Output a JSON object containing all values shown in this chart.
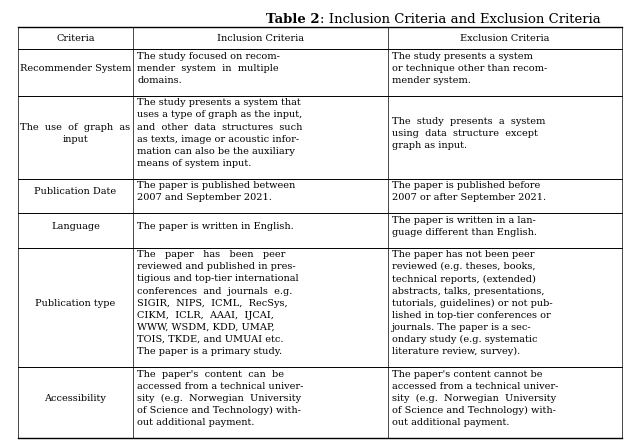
{
  "title_bold": "Table 2",
  "title_rest": ": Inclusion Criteria and Exclusion Criteria",
  "col_headers": [
    "Criteria",
    "Inclusion Criteria",
    "Exclusion Criteria"
  ],
  "rows": [
    {
      "criteria": [
        "Recommender System"
      ],
      "inclusion": [
        "The study focused on recom-",
        "mender  system  in  multiple",
        "domains."
      ],
      "exclusion": [
        "The study presents a system",
        "or technique other than recom-",
        "mender system."
      ]
    },
    {
      "criteria": [
        "The  use  of  graph  as",
        "input"
      ],
      "inclusion": [
        "The study presents a system that",
        "uses a type of graph as the input,",
        "and  other  data  structures  such",
        "as texts, image or acoustic infor-",
        "mation can also be the auxiliary",
        "means of system input."
      ],
      "exclusion": [
        "The  study  presents  a  system",
        "using  data  structure  except",
        "graph as input."
      ]
    },
    {
      "criteria": [
        "Publication Date"
      ],
      "inclusion": [
        "The paper is published between",
        "2007 and September 2021."
      ],
      "exclusion": [
        "The paper is published before",
        "2007 or after September 2021."
      ]
    },
    {
      "criteria": [
        "Language"
      ],
      "inclusion": [
        "The paper is written in English."
      ],
      "exclusion": [
        "The paper is written in a lan-",
        "guage different than English."
      ]
    },
    {
      "criteria": [
        "Publication type"
      ],
      "inclusion": [
        "The   paper   has   been   peer",
        "reviewed and published in pres-",
        "tigious and top-tier international",
        "conferences  and  journals  e.g.",
        "SIGIR,  NIPS,  ICML,  RecSys,",
        "CIKM,  ICLR,  AAAI,  IJCAI,",
        "WWW, WSDM, KDD, UMAP,",
        "TOIS, TKDE, and UMUAI etc.",
        "The paper is a primary study."
      ],
      "exclusion": [
        "The paper has not been peer",
        "reviewed (e.g. theses, books,",
        "technical reports, (extended)",
        "abstracts, talks, presentations,",
        "tutorials, guidelines) or not pub-",
        "lished in top-tier conferences or",
        "journals. The paper is a sec-",
        "ondary study (e.g. systematic",
        "literature review, survey)."
      ]
    },
    {
      "criteria": [
        "Accessibility"
      ],
      "inclusion": [
        "The  paper's  content  can  be",
        "accessed from a technical univer-",
        "sity  (e.g.  Norwegian  University",
        "of Science and Technology) with-",
        "out additional payment."
      ],
      "exclusion": [
        "The paper's content cannot be",
        "accessed from a technical univer-",
        "sity  (e.g.  Norwegian  University",
        "of Science and Technology) with-",
        "out additional payment."
      ]
    }
  ],
  "font_size": 7.0,
  "bg_color": "#ffffff"
}
